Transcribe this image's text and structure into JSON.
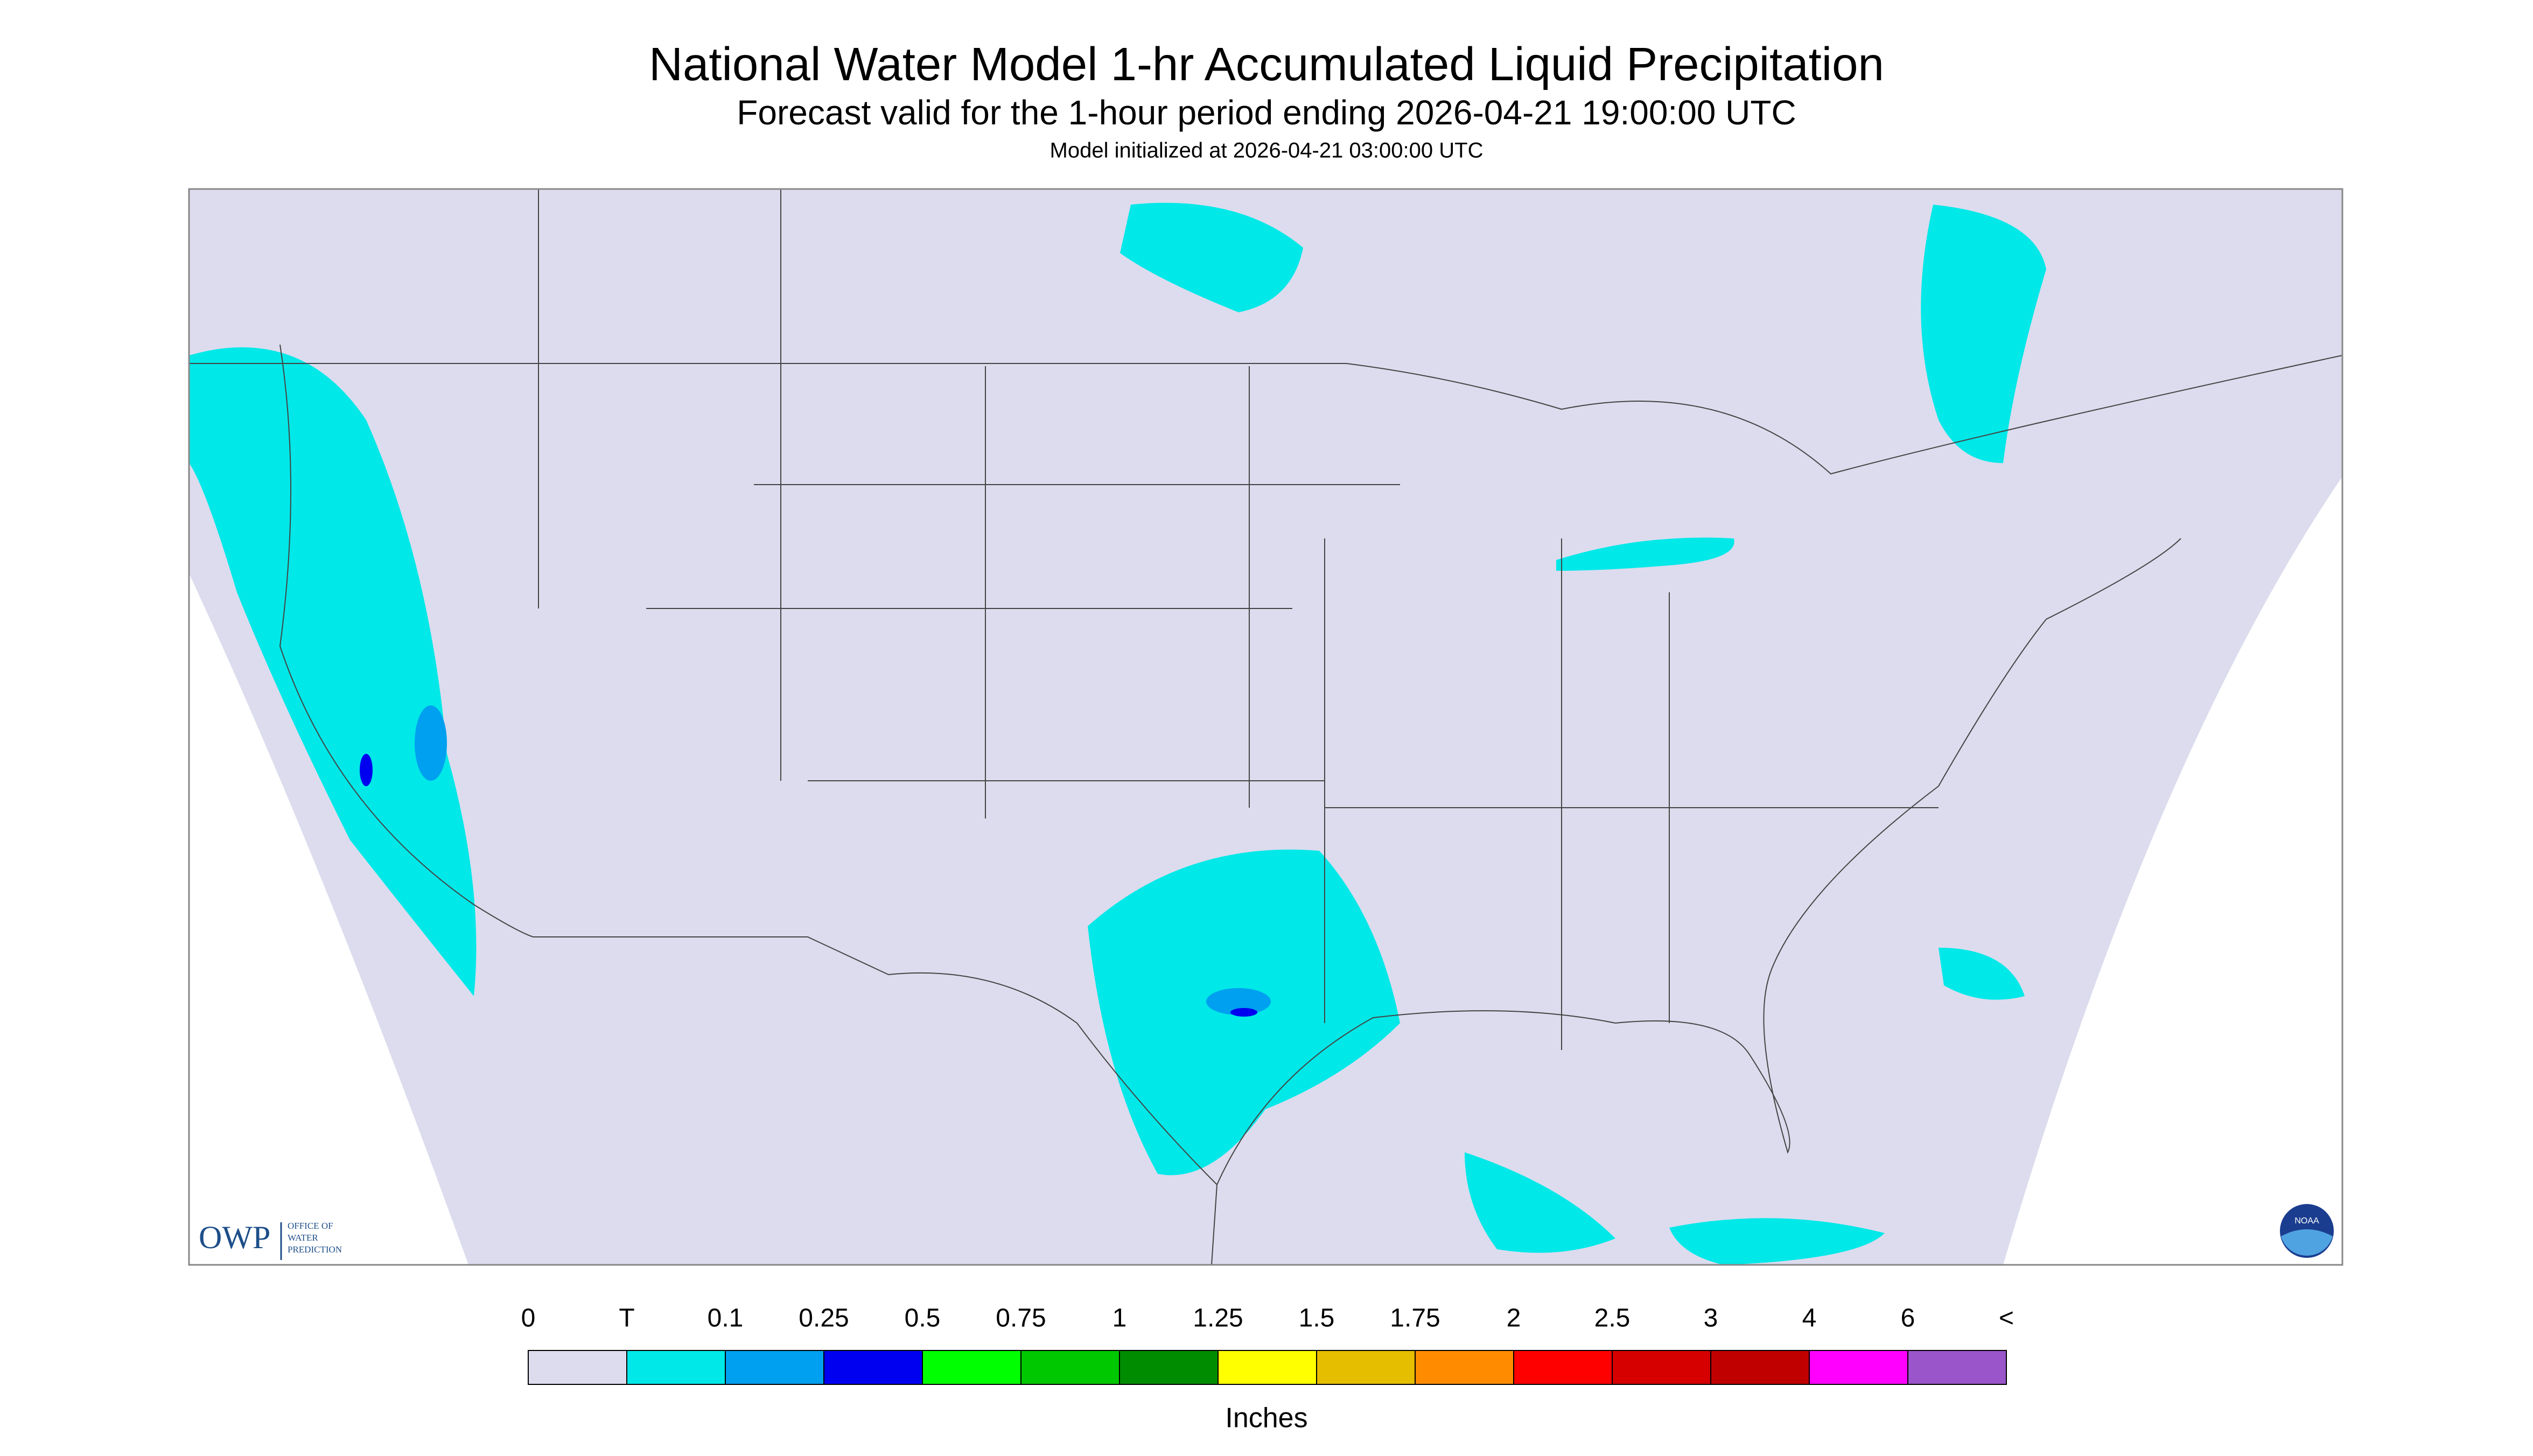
{
  "header": {
    "title": "National Water Model 1-hr Accumulated Liquid Precipitation",
    "subtitle": "Forecast valid for the 1-hour period ending 2026-04-21 19:00:00 UTC",
    "note": "Model initialized at 2026-04-21 03:00:00 UTC"
  },
  "legend": {
    "labels": [
      "0",
      "T",
      "0.1",
      "0.25",
      "0.5",
      "0.75",
      "1",
      "1.25",
      "1.5",
      "1.75",
      "2",
      "2.5",
      "3",
      "4",
      "6",
      "<"
    ],
    "colors": [
      "#dcdcee",
      "#00e8e8",
      "#00a0f0",
      "#0000f0",
      "#00ff00",
      "#00c800",
      "#008c00",
      "#ffff00",
      "#e6be00",
      "#ff8c00",
      "#ff0000",
      "#d60000",
      "#c00000",
      "#ff00ff",
      "#9955c9"
    ],
    "units": "Inches"
  },
  "logo": {
    "owp": "OWP",
    "office_lines": [
      "OFFICE OF",
      "WATER",
      "PREDICTION"
    ],
    "noaa": "NOAA"
  }
}
